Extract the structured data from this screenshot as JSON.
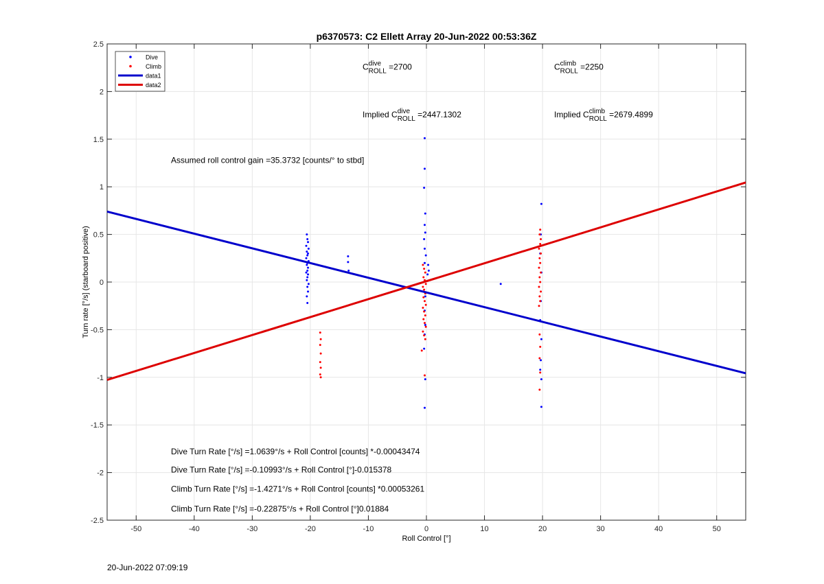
{
  "chart_data": {
    "type": "scatter",
    "title": "p6370573: C2 Ellett Array 20-Jun-2022 00:53:36Z",
    "xlabel": "Roll Control [°]",
    "ylabel": "Turn rate [°/s] (starboard positive)",
    "xlim": [
      -55,
      55
    ],
    "ylim": [
      -2.5,
      2.5
    ],
    "xticks": [
      -50,
      -40,
      -30,
      -20,
      -10,
      0,
      10,
      20,
      30,
      40,
      50
    ],
    "xtick_labels": [
      "-50",
      "-40",
      "-30",
      "-20",
      "-10",
      "0",
      "10",
      "20",
      "30",
      "40",
      "50"
    ],
    "yticks": [
      -2.5,
      -2,
      -1.5,
      -1,
      -0.5,
      0,
      0.5,
      1,
      1.5,
      2,
      2.5
    ],
    "ytick_labels": [
      "-2.5",
      "-2",
      "-1.5",
      "-1",
      "-0.5",
      "0",
      "0.5",
      "1",
      "1.5",
      "2",
      "2.5"
    ],
    "grid": true,
    "legend_position": "top-left",
    "legend": [
      {
        "label": "Dive",
        "kind": "marker",
        "color": "#0000ff"
      },
      {
        "label": "Climb",
        "kind": "marker",
        "color": "#ff0000"
      },
      {
        "label": "data1",
        "kind": "line",
        "color": "#0000cc"
      },
      {
        "label": "data2",
        "kind": "line",
        "color": "#dd0000"
      }
    ],
    "series": [
      {
        "name": "Dive",
        "color": "#0000ff",
        "points": [
          [
            -20.6,
            0.5
          ],
          [
            -20.5,
            0.45
          ],
          [
            -20.4,
            0.42
          ],
          [
            -20.7,
            0.38
          ],
          [
            -20.3,
            0.35
          ],
          [
            -20.6,
            0.32
          ],
          [
            -20.4,
            0.3
          ],
          [
            -20.5,
            0.28
          ],
          [
            -20.7,
            0.25
          ],
          [
            -20.3,
            0.22
          ],
          [
            -20.5,
            0.2
          ],
          [
            -20.6,
            0.18
          ],
          [
            -20.4,
            0.15
          ],
          [
            -20.5,
            0.12
          ],
          [
            -20.7,
            0.1
          ],
          [
            -20.4,
            0.08
          ],
          [
            -20.5,
            0.05
          ],
          [
            -20.6,
            0.02
          ],
          [
            -20.3,
            -0.02
          ],
          [
            -20.5,
            -0.05
          ],
          [
            -20.4,
            -0.1
          ],
          [
            -20.6,
            -0.15
          ],
          [
            -20.5,
            -0.22
          ],
          [
            -13.5,
            0.27
          ],
          [
            -13.5,
            0.21
          ],
          [
            -13.4,
            0.12
          ],
          [
            -0.3,
            1.51
          ],
          [
            -0.3,
            1.19
          ],
          [
            -0.4,
            0.99
          ],
          [
            -0.2,
            0.72
          ],
          [
            -0.3,
            0.6
          ],
          [
            -0.2,
            0.52
          ],
          [
            -0.4,
            0.45
          ],
          [
            -0.3,
            0.35
          ],
          [
            -0.1,
            0.28
          ],
          [
            -0.3,
            0.2
          ],
          [
            0.3,
            0.18
          ],
          [
            0.4,
            0.12
          ],
          [
            0.2,
            0.08
          ],
          [
            -0.2,
            -0.15
          ],
          [
            -0.3,
            -0.3
          ],
          [
            -0.2,
            -0.45
          ],
          [
            -0.3,
            -0.55
          ],
          [
            -0.4,
            -0.7
          ],
          [
            -0.2,
            -1.02
          ],
          [
            -0.3,
            -1.32
          ],
          [
            12.8,
            -0.02
          ],
          [
            19.8,
            0.82
          ],
          [
            19.7,
            0.5
          ],
          [
            19.6,
            0.3
          ],
          [
            19.8,
            0.1
          ],
          [
            19.7,
            -0.2
          ],
          [
            19.6,
            -0.4
          ],
          [
            19.8,
            -0.6
          ],
          [
            19.7,
            -0.82
          ],
          [
            19.6,
            -0.92
          ],
          [
            19.8,
            -1.02
          ],
          [
            19.8,
            -1.31
          ]
        ]
      },
      {
        "name": "Climb",
        "color": "#ff0000",
        "points": [
          [
            -18.3,
            -0.53
          ],
          [
            -18.2,
            -0.6
          ],
          [
            -18.3,
            -0.66
          ],
          [
            -18.2,
            -0.75
          ],
          [
            -18.3,
            -0.84
          ],
          [
            -18.2,
            -0.9
          ],
          [
            -18.3,
            -0.97
          ],
          [
            -18.2,
            -1.0
          ],
          [
            -0.6,
            0.18
          ],
          [
            -0.4,
            0.14
          ],
          [
            -0.2,
            0.1
          ],
          [
            -0.5,
            0.05
          ],
          [
            -0.3,
            0.02
          ],
          [
            -0.1,
            -0.02
          ],
          [
            -0.6,
            -0.05
          ],
          [
            -0.4,
            -0.08
          ],
          [
            -0.2,
            -0.12
          ],
          [
            -0.5,
            -0.16
          ],
          [
            -0.3,
            -0.2
          ],
          [
            -0.1,
            -0.24
          ],
          [
            -0.6,
            -0.27
          ],
          [
            -0.4,
            -0.31
          ],
          [
            -0.2,
            -0.35
          ],
          [
            -0.5,
            -0.39
          ],
          [
            -0.3,
            -0.43
          ],
          [
            -0.1,
            -0.47
          ],
          [
            -0.6,
            -0.52
          ],
          [
            -0.4,
            -0.56
          ],
          [
            -0.2,
            -0.6
          ],
          [
            -0.8,
            -0.72
          ],
          [
            -0.3,
            -0.98
          ],
          [
            19.6,
            0.55
          ],
          [
            19.5,
            0.5
          ],
          [
            19.7,
            0.45
          ],
          [
            19.6,
            0.4
          ],
          [
            19.4,
            0.35
          ],
          [
            19.7,
            0.3
          ],
          [
            19.5,
            0.25
          ],
          [
            19.6,
            0.2
          ],
          [
            19.4,
            0.15
          ],
          [
            19.7,
            0.1
          ],
          [
            19.5,
            0.05
          ],
          [
            19.6,
            0.0
          ],
          [
            19.4,
            -0.05
          ],
          [
            19.7,
            -0.1
          ],
          [
            19.5,
            -0.15
          ],
          [
            19.6,
            -0.2
          ],
          [
            19.4,
            -0.25
          ],
          [
            19.5,
            -0.55
          ],
          [
            19.6,
            -0.68
          ],
          [
            19.5,
            -0.8
          ],
          [
            19.6,
            -0.95
          ],
          [
            19.5,
            -1.13
          ]
        ]
      }
    ],
    "lines": [
      {
        "name": "data1",
        "color": "#0000cc",
        "x": [
          -55,
          55
        ],
        "y": [
          0.7396,
          -0.9578
        ]
      },
      {
        "name": "data2",
        "color": "#dd0000",
        "x": [
          -55,
          55
        ],
        "y": [
          -1.0274,
          1.0452
        ]
      }
    ],
    "annotations": [
      {
        "kind": "sub",
        "base": "C",
        "sup": "dive",
        "sub": "ROLL",
        "value": "=2700",
        "x": -11,
        "y": 2.23
      },
      {
        "kind": "sub",
        "base": "C",
        "sup": "climb",
        "sub": "ROLL",
        "value": "=2250",
        "x": 22,
        "y": 2.23
      },
      {
        "kind": "sub",
        "prefix": "Implied ",
        "base": "C",
        "sup": "dive",
        "sub": "ROLL",
        "value": "=2447.1302",
        "x": -11,
        "y": 1.73
      },
      {
        "kind": "sub",
        "prefix": "Implied ",
        "base": "C",
        "sup": "climb",
        "sub": "ROLL",
        "value": "=2679.4899",
        "x": 22,
        "y": 1.73
      },
      {
        "kind": "text",
        "text": "Assumed roll control gain =35.3732 [counts/° to stbd]",
        "x": -44,
        "y": 1.25
      },
      {
        "kind": "text",
        "text": "Dive Turn Rate [°/s] =1.0639°/s + Roll Control [counts] *-0.00043474",
        "x": -44,
        "y": -1.81
      },
      {
        "kind": "text",
        "text": "Dive Turn Rate [°/s] =-0.10993°/s + Roll Control [°]-0.015378",
        "x": -44,
        "y": -2.0
      },
      {
        "kind": "text",
        "text": "Climb Turn Rate [°/s] =-1.4271°/s + Roll Control [counts] *0.00053261",
        "x": -44,
        "y": -2.2
      },
      {
        "kind": "text",
        "text": "Climb Turn Rate [°/s] =-0.22875°/s + Roll Control [°]0.01884",
        "x": -44,
        "y": -2.41
      }
    ]
  },
  "footer": {
    "timestamp": "20-Jun-2022 07:09:19"
  }
}
